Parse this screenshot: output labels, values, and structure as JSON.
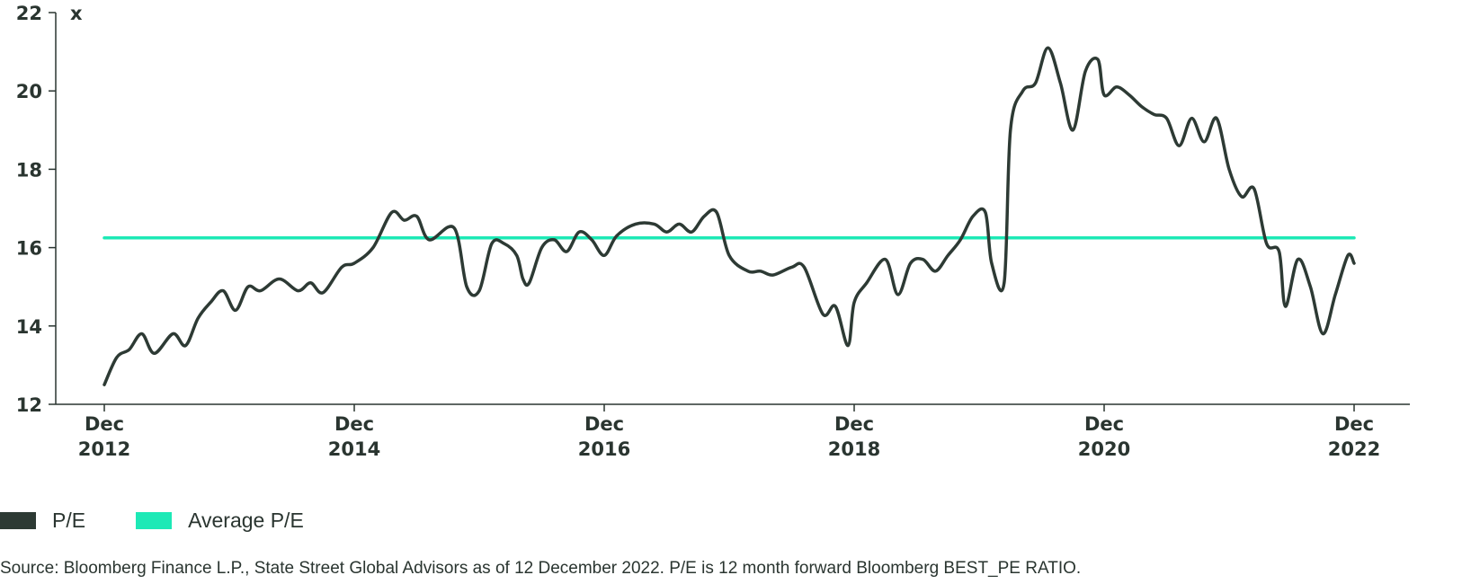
{
  "chart_data": {
    "type": "line",
    "unit_label": "x",
    "ylim": [
      12,
      22
    ],
    "y_ticks": [
      "12",
      "14",
      "16",
      "18",
      "20",
      "22"
    ],
    "x_ticks": [
      {
        "year": 2012,
        "line1": "Dec",
        "line2": "2012"
      },
      {
        "year": 2014,
        "line1": "Dec",
        "line2": "2014"
      },
      {
        "year": 2016,
        "line1": "Dec",
        "line2": "2016"
      },
      {
        "year": 2018,
        "line1": "Dec",
        "line2": "2018"
      },
      {
        "year": 2020,
        "line1": "Dec",
        "line2": "2020"
      },
      {
        "year": 2022,
        "line1": "Dec",
        "line2": "2022"
      }
    ],
    "xlim": [
      2012,
      2022
    ],
    "grid": false,
    "legend_position": "bottom-left",
    "series": [
      {
        "name": "P/E",
        "color": "#2d3a34",
        "x": [
          2012.0,
          2012.1,
          2012.2,
          2012.3,
          2012.4,
          2012.55,
          2012.65,
          2012.75,
          2012.85,
          2012.95,
          2013.05,
          2013.15,
          2013.25,
          2013.4,
          2013.55,
          2013.65,
          2013.75,
          2013.9,
          2014.0,
          2014.15,
          2014.3,
          2014.4,
          2014.5,
          2014.6,
          2014.8,
          2014.9,
          2015.0,
          2015.1,
          2015.2,
          2015.3,
          2015.35,
          2015.4,
          2015.5,
          2015.6,
          2015.7,
          2015.8,
          2015.9,
          2016.0,
          2016.1,
          2016.25,
          2016.4,
          2016.5,
          2016.6,
          2016.7,
          2016.8,
          2016.9,
          2017.0,
          2017.15,
          2017.25,
          2017.35,
          2017.5,
          2017.6,
          2017.75,
          2017.85,
          2017.95,
          2018.0,
          2018.1,
          2018.25,
          2018.35,
          2018.45,
          2018.55,
          2018.65,
          2018.75,
          2018.85,
          2018.95,
          2019.05,
          2019.1,
          2019.2,
          2019.25,
          2019.35,
          2019.45,
          2019.55,
          2019.65,
          2019.75,
          2019.85,
          2019.95,
          2020.0,
          2020.1,
          2020.2,
          2020.3,
          2020.4,
          2020.5,
          2020.6,
          2020.7,
          2020.8,
          2020.9,
          2021.0,
          2021.1,
          2021.2,
          2021.3,
          2021.4,
          2021.45,
          2021.55,
          2021.65,
          2021.75,
          2021.85,
          2021.95,
          2022.0
        ],
        "values": [
          12.5,
          13.2,
          13.4,
          13.8,
          13.3,
          13.8,
          13.5,
          14.2,
          14.6,
          14.9,
          14.4,
          15.0,
          14.9,
          15.2,
          14.9,
          15.1,
          14.85,
          15.5,
          15.6,
          16.0,
          16.9,
          16.7,
          16.8,
          16.2,
          16.5,
          15.0,
          14.9,
          16.1,
          16.1,
          15.8,
          15.2,
          15.1,
          16.0,
          16.2,
          15.9,
          16.4,
          16.2,
          15.8,
          16.3,
          16.6,
          16.6,
          16.4,
          16.6,
          16.4,
          16.8,
          16.9,
          15.8,
          15.4,
          15.4,
          15.3,
          15.5,
          15.5,
          14.3,
          14.5,
          13.5,
          14.6,
          15.1,
          15.7,
          14.8,
          15.6,
          15.7,
          15.4,
          15.8,
          16.2,
          16.8,
          16.9,
          15.6,
          15.1,
          19.0,
          20.0,
          20.2,
          21.1,
          20.2,
          19.0,
          20.5,
          20.8,
          19.9,
          20.1,
          19.9,
          19.6,
          19.4,
          19.3,
          18.6,
          19.3,
          18.7,
          19.3,
          18.0,
          17.3,
          17.5,
          16.1,
          15.9,
          14.5,
          15.7,
          15.0,
          13.8,
          14.8,
          15.8,
          15.6
        ]
      },
      {
        "name": "Average P/E",
        "color": "#1de9b6",
        "x": [
          2012.0,
          2022.0
        ],
        "values": [
          16.25,
          16.25
        ]
      }
    ]
  },
  "source_note": "Source: Bloomberg Finance L.P., State Street Global Advisors as of 12 December 2022. P/E is 12 month forward Bloomberg BEST_PE RATIO."
}
